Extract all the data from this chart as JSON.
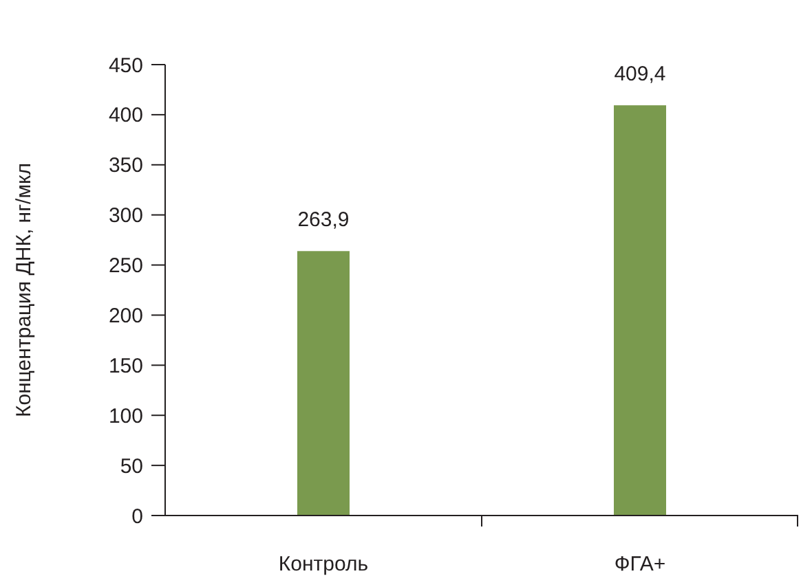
{
  "chart_data": {
    "type": "bar",
    "ylabel": "Концентрация ДНК, нг/мкл",
    "categories": [
      "Контроль",
      "ФГА+"
    ],
    "values": [
      263.9,
      409.4
    ],
    "value_labels": [
      "263,9",
      "409,4"
    ],
    "color": "#7a9a4e",
    "ylim": [
      0,
      450
    ],
    "yticks": [
      0,
      50,
      100,
      150,
      200,
      250,
      300,
      350,
      400,
      450
    ],
    "grid": false
  }
}
